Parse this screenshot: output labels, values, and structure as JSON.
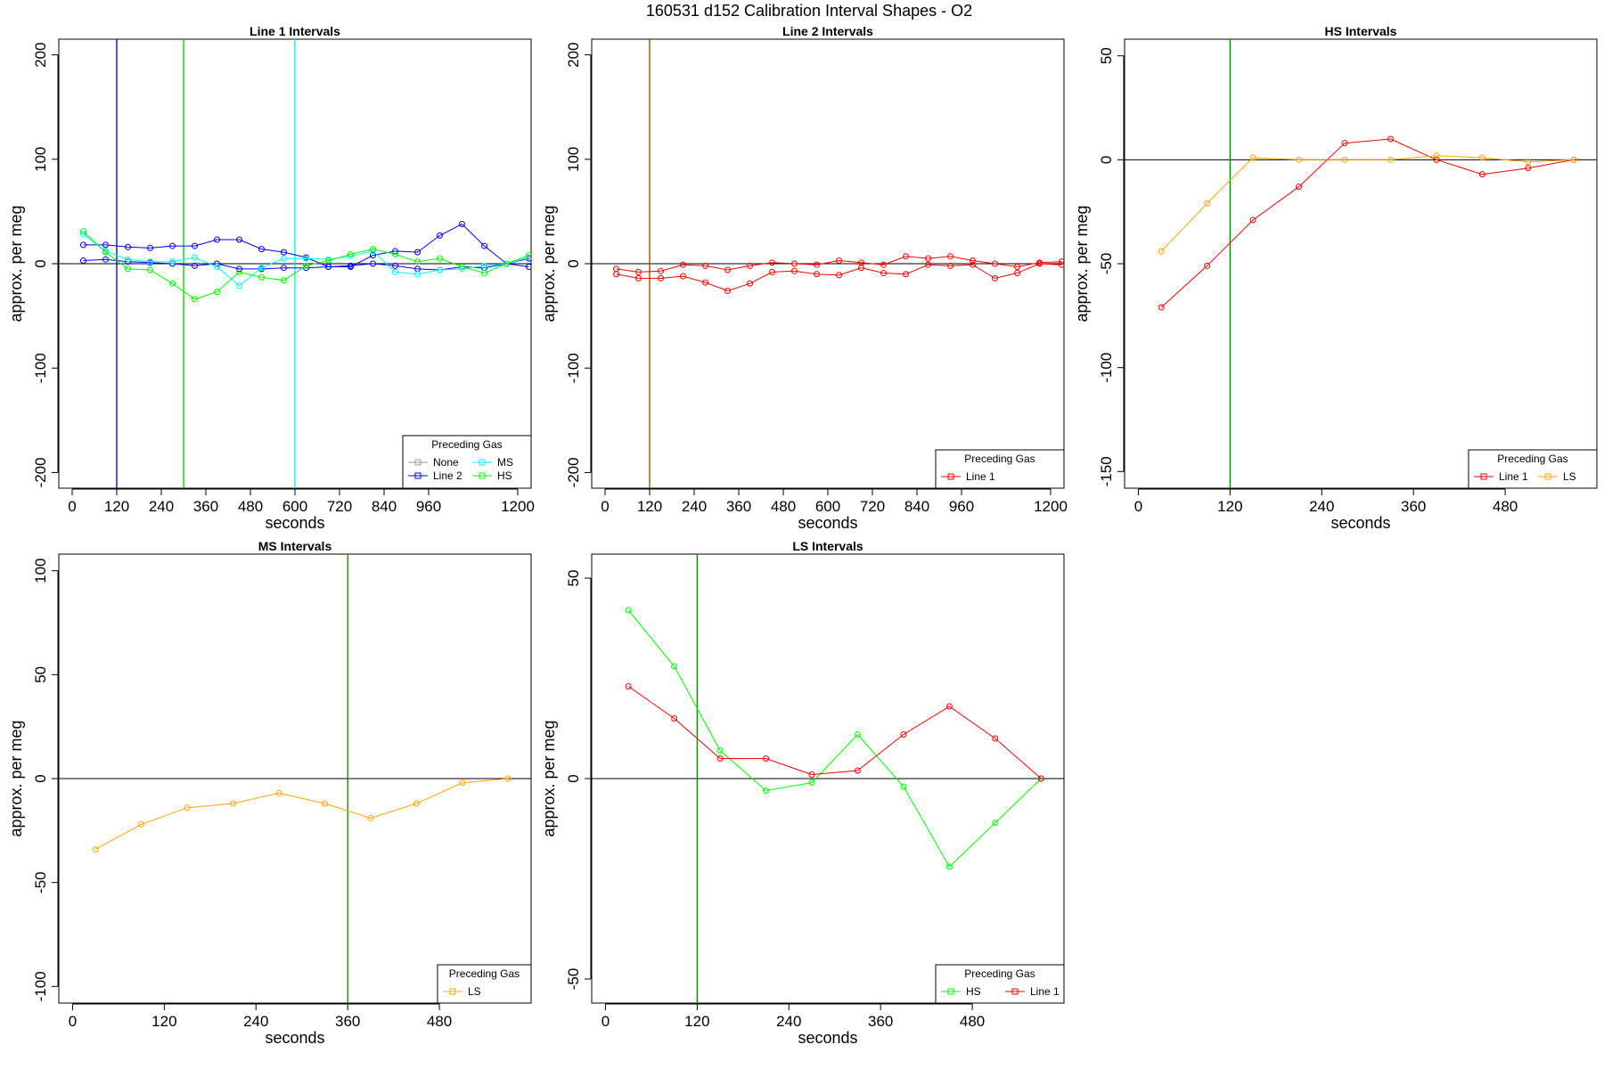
{
  "figure": {
    "title": "160531   d152   Calibration Interval Shapes - O2"
  },
  "chart_data": [
    {
      "type": "line",
      "title": "Line 1 Intervals",
      "xlabel": "seconds",
      "ylabel": "approx. per meg",
      "xlim": [
        -36,
        1236
      ],
      "ylim": [
        -215,
        215
      ],
      "xticks": [
        0,
        120,
        240,
        360,
        480,
        600,
        720,
        840,
        960,
        1200
      ],
      "yticks": [
        -200,
        -100,
        0,
        100,
        200
      ],
      "hline": 0,
      "vlines": [
        {
          "x": 120,
          "color": "#00008B"
        },
        {
          "x": 300,
          "color": "#00CD00"
        },
        {
          "x": 600,
          "color": "#00EEEE"
        }
      ],
      "legend": {
        "title": "Preceding Gas",
        "position": "bottom-right",
        "columns": 2,
        "entries": [
          {
            "label": "None",
            "color": "#999999"
          },
          {
            "label": "Line 2",
            "color": "#0000FF"
          },
          {
            "label": "MS",
            "color": "#00FFFF"
          },
          {
            "label": "HS",
            "color": "#00FF00"
          }
        ]
      },
      "series": [
        {
          "legend": "Line 2",
          "color": "#0000FF",
          "x": [
            30,
            90,
            150,
            210,
            270,
            330,
            390,
            450,
            510,
            570,
            630,
            690,
            750,
            810,
            870,
            930,
            990,
            1050,
            1110,
            1170,
            1230
          ],
          "y": [
            18,
            18,
            16,
            15,
            17,
            17,
            23,
            23,
            14,
            11,
            6,
            -3,
            -3,
            8,
            12,
            11,
            27,
            38,
            17,
            0,
            5
          ]
        },
        {
          "legend": "Line 2",
          "color": "#0000FF",
          "x": [
            30,
            90,
            150,
            210,
            270,
            330,
            390,
            450,
            510,
            570,
            630,
            690,
            750,
            810,
            870,
            930,
            990,
            1050,
            1110,
            1170,
            1230
          ],
          "y": [
            3,
            4,
            2,
            1,
            0,
            -2,
            0,
            -5,
            -5,
            -4,
            -4,
            -3,
            -2,
            0,
            -2,
            -5,
            -6,
            -3,
            -4,
            0,
            -3
          ]
        },
        {
          "legend": "MS",
          "color": "#00FFFF",
          "x": [
            30,
            90,
            150,
            210,
            270,
            330,
            390,
            450,
            510,
            570,
            630,
            690,
            750,
            810,
            870,
            930,
            990,
            1050,
            1110,
            1170,
            1230
          ],
          "y": [
            28,
            12,
            4,
            2,
            2,
            6,
            -3,
            -21,
            -4,
            5,
            5,
            4,
            7,
            12,
            -8,
            -10,
            -6,
            -5,
            -2,
            0,
            6
          ]
        },
        {
          "legend": "HS",
          "color": "#00FF00",
          "x": [
            30,
            90,
            150,
            210,
            270,
            330,
            390,
            450,
            510,
            570,
            630,
            690,
            750,
            810,
            870,
            930,
            990,
            1050,
            1110,
            1170,
            1230
          ],
          "y": [
            31,
            11,
            -5,
            -6,
            -19,
            -34,
            -27,
            -8,
            -13,
            -16,
            -2,
            3,
            9,
            14,
            9,
            2,
            5,
            -3,
            -9,
            0,
            8
          ]
        }
      ]
    },
    {
      "type": "line",
      "title": "Line 2 Intervals",
      "xlabel": "seconds",
      "ylabel": "approx. per meg",
      "xlim": [
        -36,
        1236
      ],
      "ylim": [
        -215,
        215
      ],
      "xticks": [
        0,
        120,
        240,
        360,
        480,
        600,
        720,
        840,
        960,
        1200
      ],
      "yticks": [
        -200,
        -100,
        0,
        100,
        200
      ],
      "hline": 0,
      "vlines": [
        {
          "x": 120,
          "color": "#8B4500"
        }
      ],
      "legend": {
        "title": "Preceding Gas",
        "position": "bottom-right",
        "columns": 1,
        "entries": [
          {
            "label": "Line 1",
            "color": "#FF0000"
          }
        ]
      },
      "series": [
        {
          "legend": "Line 1",
          "color": "#FF0000",
          "x": [
            30,
            90,
            150,
            210,
            270,
            330,
            390,
            450,
            510,
            570,
            630,
            690,
            750,
            810,
            870,
            930,
            990,
            1050,
            1110,
            1170,
            1230
          ],
          "y": [
            -5,
            -8,
            -7,
            -1,
            -2,
            -6,
            -2,
            1,
            0,
            -1,
            3,
            1,
            -1,
            7,
            5,
            7,
            3,
            0,
            -3,
            1,
            2
          ]
        },
        {
          "legend": "Line 1",
          "color": "#FF0000",
          "x": [
            30,
            90,
            150,
            210,
            270,
            330,
            390,
            450,
            510,
            570,
            630,
            690,
            750,
            810,
            870,
            930,
            990,
            1050,
            1110,
            1170,
            1230
          ],
          "y": [
            -10,
            -14,
            -14,
            -12,
            -18,
            -26,
            -19,
            -8,
            -7,
            -10,
            -11,
            -4,
            -9,
            -10,
            -1,
            -2,
            -1,
            -14,
            -9,
            0,
            -1
          ]
        }
      ]
    },
    {
      "type": "line",
      "title": "HS Intervals",
      "xlabel": "seconds",
      "ylabel": "approx. per meg",
      "xlim": [
        -18,
        600
      ],
      "ylim": [
        -158,
        58
      ],
      "xticks": [
        0,
        120,
        240,
        360,
        480
      ],
      "yticks": [
        -150,
        -100,
        -50,
        0,
        50
      ],
      "hline": 0,
      "vlines": [
        {
          "x": 120,
          "color": "#008B00"
        }
      ],
      "legend": {
        "title": "Preceding Gas",
        "position": "bottom-right",
        "columns": 2,
        "entries": [
          {
            "label": "Line 1",
            "color": "#FF0000"
          },
          {
            "label": "LS",
            "color": "#FFA500"
          }
        ]
      },
      "series": [
        {
          "legend": "Line 1",
          "color": "#FF0000",
          "x": [
            30,
            90,
            150,
            210,
            270,
            330,
            390,
            450,
            510,
            570
          ],
          "y": [
            -71,
            -51,
            -29,
            -13,
            8,
            10,
            0,
            -7,
            -4,
            0
          ]
        },
        {
          "legend": "LS",
          "color": "#FFA500",
          "x": [
            30,
            90,
            150,
            210,
            270,
            330,
            390,
            450,
            510,
            570
          ],
          "y": [
            -44,
            -21,
            1,
            0,
            0,
            0,
            2,
            1,
            -1,
            0
          ]
        }
      ]
    },
    {
      "type": "line",
      "title": "MS Intervals",
      "xlabel": "seconds",
      "ylabel": "approx. per meg",
      "xlim": [
        -18,
        600
      ],
      "ylim": [
        -108,
        108
      ],
      "xticks": [
        0,
        120,
        240,
        360,
        480
      ],
      "yticks": [
        -100,
        -50,
        0,
        50,
        100
      ],
      "hline": 0,
      "vlines": [
        {
          "x": 360,
          "color": "#008B00"
        }
      ],
      "legend": {
        "title": "Preceding Gas",
        "position": "bottom-right",
        "columns": 1,
        "entries": [
          {
            "label": "LS",
            "color": "#FFA500"
          }
        ]
      },
      "series": [
        {
          "legend": "LS",
          "color": "#FFA500",
          "x": [
            30,
            90,
            150,
            210,
            270,
            330,
            390,
            450,
            510,
            570
          ],
          "y": [
            -34,
            -22,
            -14,
            -12,
            -7,
            -12,
            -19,
            -12,
            -2,
            0
          ]
        }
      ]
    },
    {
      "type": "line",
      "title": "LS Intervals",
      "xlabel": "seconds",
      "ylabel": "approx. per meg",
      "xlim": [
        -18,
        600
      ],
      "ylim": [
        -56,
        56
      ],
      "xticks": [
        0,
        120,
        240,
        360,
        480
      ],
      "yticks": [
        -50,
        0,
        50
      ],
      "hline": 0,
      "vlines": [
        {
          "x": 120,
          "color": "#008B00"
        }
      ],
      "legend": {
        "title": "Preceding Gas",
        "position": "bottom-right",
        "columns": 2,
        "entries": [
          {
            "label": "HS",
            "color": "#00FF00"
          },
          {
            "label": "Line 1",
            "color": "#FF0000"
          }
        ]
      },
      "series": [
        {
          "legend": "HS",
          "color": "#00FF00",
          "x": [
            30,
            90,
            150,
            210,
            270,
            330,
            390,
            450,
            510,
            570
          ],
          "y": [
            42,
            28,
            7,
            -3,
            -1,
            11,
            -2,
            -22,
            -11,
            0
          ]
        },
        {
          "legend": "Line 1",
          "color": "#FF0000",
          "x": [
            30,
            90,
            150,
            210,
            270,
            330,
            390,
            450,
            510,
            570
          ],
          "y": [
            23,
            15,
            5,
            5,
            1,
            2,
            11,
            18,
            10,
            0
          ]
        }
      ]
    }
  ]
}
